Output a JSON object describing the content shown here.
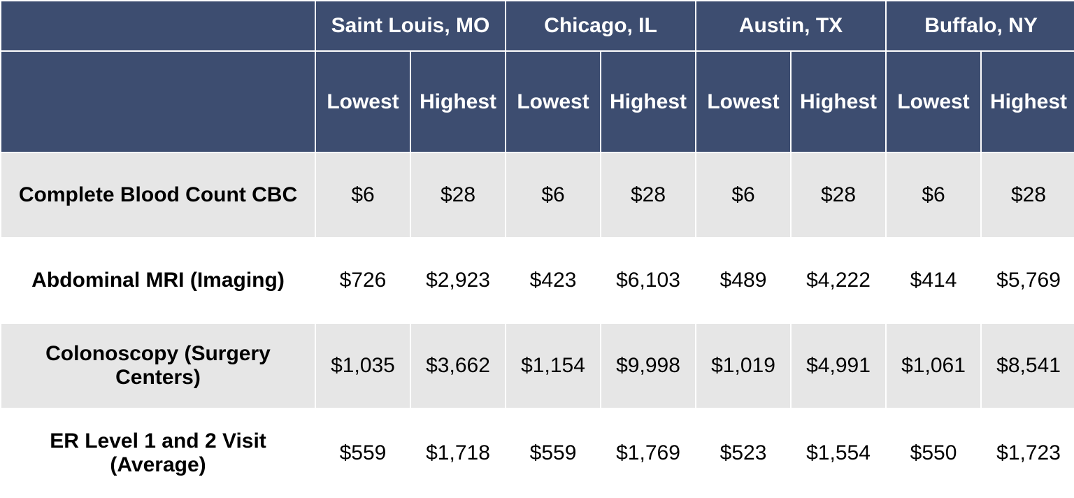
{
  "table": {
    "cities": [
      "Saint Louis, MO",
      "Chicago, IL",
      "Austin, TX",
      "Buffalo, NY"
    ],
    "subheaders": [
      "Lowest",
      "Highest"
    ],
    "rows": [
      {
        "procedure": "Complete Blood Count CBC",
        "values": [
          "$6",
          "$28",
          "$6",
          "$28",
          "$6",
          "$28",
          "$6",
          "$28"
        ]
      },
      {
        "procedure": "Abdominal MRI (Imaging)",
        "values": [
          "$726",
          "$2,923",
          "$423",
          "$6,103",
          "$489",
          "$4,222",
          "$414",
          "$5,769"
        ]
      },
      {
        "procedure": "Colonoscopy (Surgery Centers)",
        "values": [
          "$1,035",
          "$3,662",
          "$1,154",
          "$9,998",
          "$1,019",
          "$4,991",
          "$1,061",
          "$8,541"
        ]
      },
      {
        "procedure": "ER Level 1 and 2 Visit (Average)",
        "values": [
          "$559",
          "$1,718",
          "$559",
          "$1,769",
          "$523",
          "$1,554",
          "$550",
          "$1,723"
        ]
      }
    ]
  },
  "colors": {
    "header_bg": "#3d4d70",
    "header_text": "#ffffff",
    "shaded_row": "#e6e6e6",
    "plain_row": "#ffffff"
  }
}
